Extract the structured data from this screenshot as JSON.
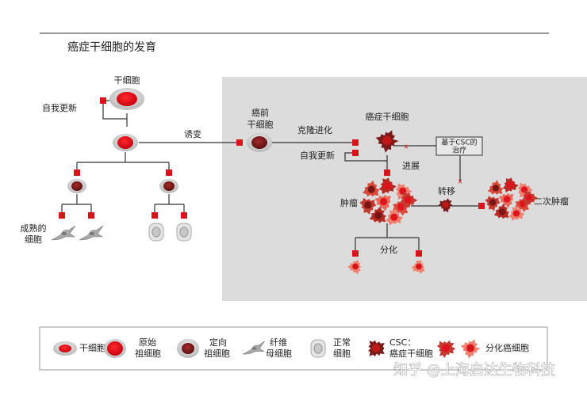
{
  "header": {
    "title": "癌症干细胞的发育"
  },
  "labels": {
    "stem_cell": "干细胞",
    "self_renewal_1": "自我更新",
    "mutation": "诱变",
    "mature_cells": [
      "成熟的",
      "细胞"
    ],
    "precancer_stem_cell": [
      "癌前",
      "干细胞"
    ],
    "clonal_evolution": "克隆进化",
    "self_renewal_2": "自我更新",
    "cancer_stem_cell": "癌症干细胞",
    "csc_therapy": [
      "基于CSC的",
      "治疗"
    ],
    "progression": "进展",
    "metastasis": "转移",
    "tumor": "肿瘤",
    "secondary_tumor": "二次肿瘤",
    "differentiation": "分化"
  },
  "legend": [
    {
      "label": [
        "干细胞"
      ]
    },
    {
      "label": [
        "原始",
        "祖细胞"
      ]
    },
    {
      "label": [
        "定向",
        "祖细胞"
      ]
    },
    {
      "label": [
        "纤维",
        "母细胞"
      ]
    },
    {
      "label": [
        "正常",
        "细胞"
      ]
    },
    {
      "label": [
        "CSC：",
        "癌症干细胞"
      ]
    },
    {
      "label": [
        "分化癌细胞"
      ]
    }
  ],
  "watermark": "知乎 @上海启达生物科技"
}
